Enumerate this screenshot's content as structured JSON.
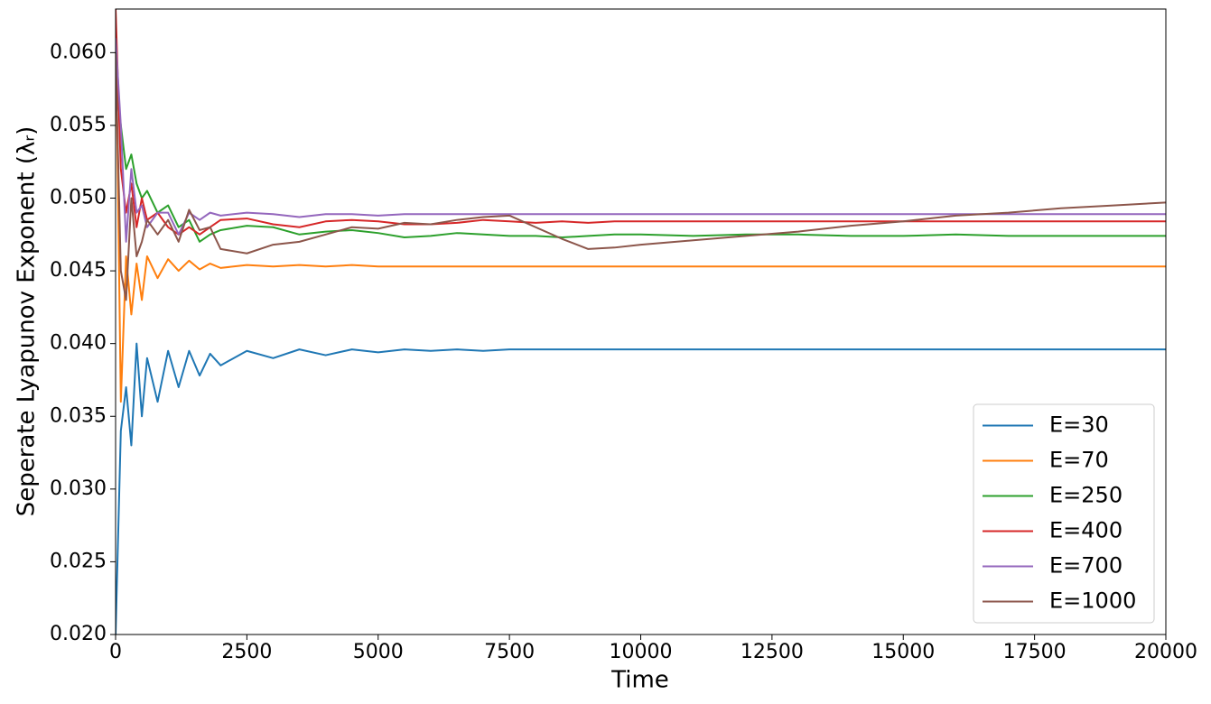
{
  "chart_data": {
    "type": "line",
    "x_label": "Time",
    "y_label": "Seperate Lyapunov Exponent (λᵣ)",
    "x": [
      0,
      100,
      200,
      300,
      400,
      500,
      600,
      800,
      1000,
      1200,
      1400,
      1600,
      1800,
      2000,
      2500,
      3000,
      3500,
      4000,
      4500,
      5000,
      5500,
      6000,
      6500,
      7000,
      7500,
      8000,
      8500,
      9000,
      9500,
      10000,
      11000,
      12000,
      13000,
      14000,
      15000,
      16000,
      17000,
      18000,
      19000,
      20000
    ],
    "series": [
      {
        "name": "E=30",
        "color": "#1f77b4",
        "values": [
          0.02,
          0.034,
          0.037,
          0.033,
          0.04,
          0.035,
          0.039,
          0.036,
          0.0395,
          0.037,
          0.0395,
          0.0378,
          0.0393,
          0.0385,
          0.0395,
          0.039,
          0.0396,
          0.0392,
          0.0396,
          0.0394,
          0.0396,
          0.0395,
          0.0396,
          0.0395,
          0.0396,
          0.0396,
          0.0396,
          0.0396,
          0.0396,
          0.0396,
          0.0396,
          0.0396,
          0.0396,
          0.0396,
          0.0396,
          0.0396,
          0.0396,
          0.0396,
          0.0396,
          0.0396
        ]
      },
      {
        "name": "E=70",
        "color": "#ff7f0e",
        "values": [
          0.063,
          0.036,
          0.046,
          0.042,
          0.0455,
          0.043,
          0.046,
          0.0445,
          0.0458,
          0.045,
          0.0457,
          0.0451,
          0.0455,
          0.0452,
          0.0454,
          0.0453,
          0.0454,
          0.0453,
          0.0454,
          0.0453,
          0.0453,
          0.0453,
          0.0453,
          0.0453,
          0.0453,
          0.0453,
          0.0453,
          0.0453,
          0.0453,
          0.0453,
          0.0453,
          0.0453,
          0.0453,
          0.0453,
          0.0453,
          0.0453,
          0.0453,
          0.0453,
          0.0453,
          0.0453
        ]
      },
      {
        "name": "E=250",
        "color": "#2ca02c",
        "values": [
          0.058,
          0.055,
          0.052,
          0.053,
          0.051,
          0.05,
          0.0505,
          0.049,
          0.0495,
          0.048,
          0.0485,
          0.047,
          0.0475,
          0.0478,
          0.0481,
          0.048,
          0.0475,
          0.0477,
          0.0478,
          0.0476,
          0.0473,
          0.0474,
          0.0476,
          0.0475,
          0.0474,
          0.0474,
          0.0473,
          0.0474,
          0.0475,
          0.0475,
          0.0474,
          0.0475,
          0.0475,
          0.0474,
          0.0474,
          0.0475,
          0.0474,
          0.0474,
          0.0474,
          0.0474
        ]
      },
      {
        "name": "E=400",
        "color": "#d62728",
        "values": [
          0.063,
          0.052,
          0.049,
          0.051,
          0.048,
          0.05,
          0.0485,
          0.049,
          0.048,
          0.0475,
          0.048,
          0.0475,
          0.048,
          0.0485,
          0.0486,
          0.0482,
          0.048,
          0.0484,
          0.0485,
          0.0484,
          0.0482,
          0.0482,
          0.0483,
          0.0485,
          0.0484,
          0.0483,
          0.0484,
          0.0483,
          0.0484,
          0.0484,
          0.0484,
          0.0484,
          0.0484,
          0.0484,
          0.0484,
          0.0484,
          0.0484,
          0.0484,
          0.0484,
          0.0484
        ]
      },
      {
        "name": "E=700",
        "color": "#9467bd",
        "values": [
          0.061,
          0.055,
          0.047,
          0.052,
          0.049,
          0.0495,
          0.048,
          0.049,
          0.049,
          0.0475,
          0.049,
          0.0485,
          0.049,
          0.0488,
          0.049,
          0.0489,
          0.0487,
          0.0489,
          0.0489,
          0.0488,
          0.0489,
          0.0489,
          0.0489,
          0.0489,
          0.0489,
          0.0489,
          0.0489,
          0.0489,
          0.0489,
          0.0489,
          0.0489,
          0.0489,
          0.0489,
          0.0489,
          0.0489,
          0.0489,
          0.0489,
          0.0489,
          0.0489,
          0.0489
        ]
      },
      {
        "name": "E=1000",
        "color": "#8c564b",
        "values": [
          0.06,
          0.045,
          0.043,
          0.05,
          0.046,
          0.047,
          0.0485,
          0.0475,
          0.0485,
          0.047,
          0.0492,
          0.0478,
          0.048,
          0.0465,
          0.0462,
          0.0468,
          0.047,
          0.0475,
          0.048,
          0.0479,
          0.0483,
          0.0482,
          0.0485,
          0.0487,
          0.0488,
          0.048,
          0.0472,
          0.0465,
          0.0466,
          0.0468,
          0.0471,
          0.0474,
          0.0477,
          0.0481,
          0.0484,
          0.0488,
          0.049,
          0.0493,
          0.0495,
          0.0497
        ]
      }
    ],
    "xlim": [
      0,
      20000
    ],
    "xticks": [
      0,
      2500,
      5000,
      7500,
      10000,
      12500,
      15000,
      17500,
      20000
    ],
    "ylim": [
      0.02,
      0.063
    ],
    "yticks": [
      {
        "value": 0.02,
        "label": "0.020"
      },
      {
        "value": 0.025,
        "label": "0.025"
      },
      {
        "value": 0.03,
        "label": "0.030"
      },
      {
        "value": 0.035,
        "label": "0.035"
      },
      {
        "value": 0.04,
        "label": "0.040"
      },
      {
        "value": 0.045,
        "label": "0.045"
      },
      {
        "value": 0.05,
        "label": "0.050"
      },
      {
        "value": 0.055,
        "label": "0.055"
      },
      {
        "value": 0.06,
        "label": "0.060"
      }
    ],
    "grid": false,
    "legend": "lower right"
  }
}
